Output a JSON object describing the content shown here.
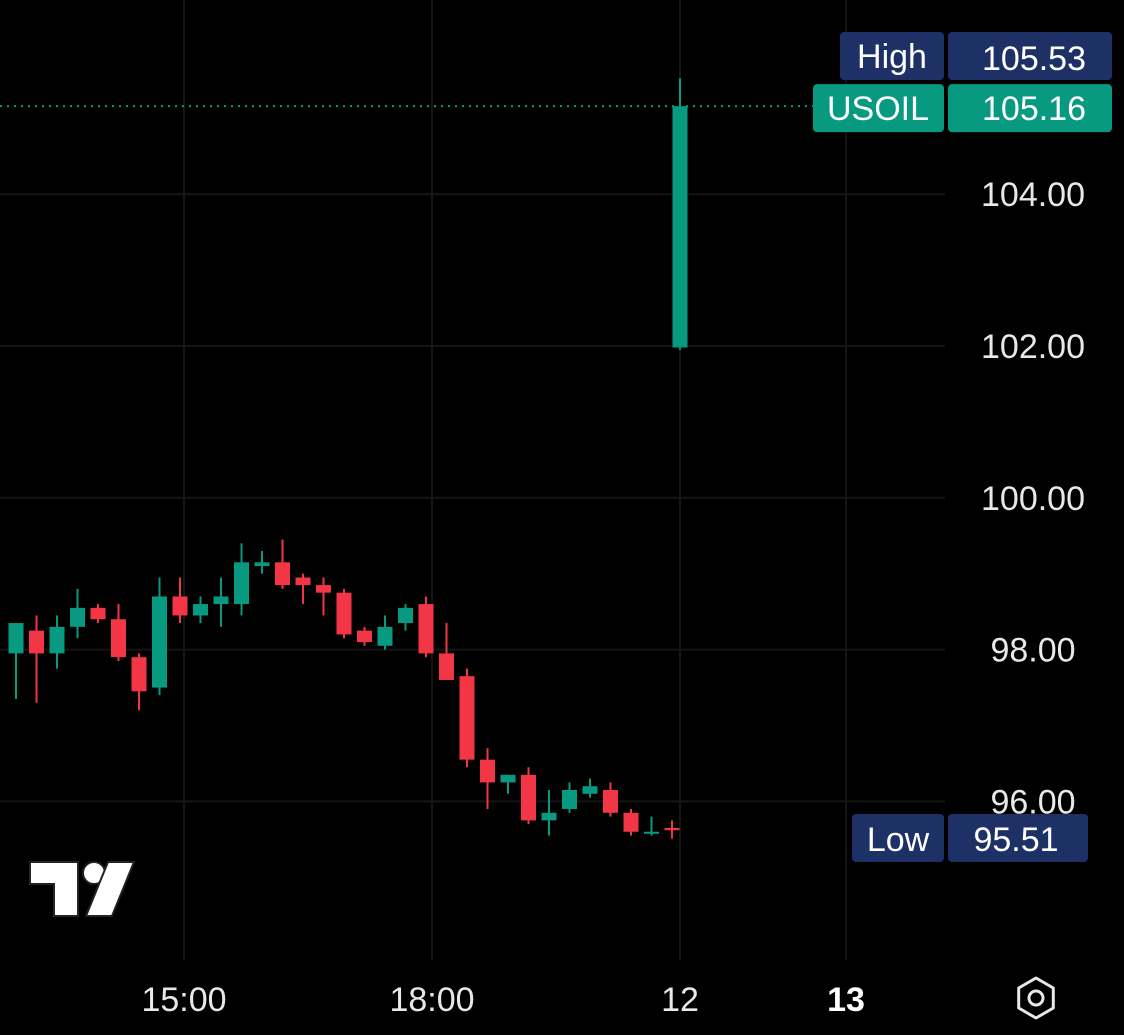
{
  "chart_data": {
    "type": "candlestick",
    "symbol": "USOIL",
    "colors": {
      "up": "#089981",
      "down": "#f23645",
      "tag_navy": "#1e3166",
      "tag_green": "#089981",
      "grid": "#151515",
      "background": "#000000"
    },
    "y_ticks": [
      "104.00",
      "102.00",
      "100.00",
      "98.00",
      "96.00"
    ],
    "y_tick_values": [
      104,
      102,
      100,
      98,
      96
    ],
    "x_ticks": [
      {
        "label": "15:00",
        "bold": false
      },
      {
        "label": "18:00",
        "bold": false
      },
      {
        "label": "12",
        "bold": false
      },
      {
        "label": "13",
        "bold": true
      }
    ],
    "ylim": [
      94.0,
      106.0
    ],
    "high": {
      "label": "High",
      "value": "105.53"
    },
    "last": {
      "label": "USOIL",
      "value": "105.16"
    },
    "low": {
      "label": "Low",
      "value": "95.51"
    },
    "candles": [
      {
        "o": 97.95,
        "h": 98.25,
        "l": 97.35,
        "c": 98.35
      },
      {
        "o": 98.25,
        "h": 98.45,
        "l": 97.3,
        "c": 97.95
      },
      {
        "o": 97.95,
        "h": 98.45,
        "l": 97.75,
        "c": 98.3
      },
      {
        "o": 98.3,
        "h": 98.8,
        "l": 98.15,
        "c": 98.55
      },
      {
        "o": 98.55,
        "h": 98.6,
        "l": 98.35,
        "c": 98.4
      },
      {
        "o": 98.4,
        "h": 98.6,
        "l": 97.85,
        "c": 97.9
      },
      {
        "o": 97.9,
        "h": 97.95,
        "l": 97.2,
        "c": 97.45
      },
      {
        "o": 97.5,
        "h": 98.95,
        "l": 97.4,
        "c": 98.7
      },
      {
        "o": 98.7,
        "h": 98.95,
        "l": 98.35,
        "c": 98.45
      },
      {
        "o": 98.45,
        "h": 98.7,
        "l": 98.35,
        "c": 98.6
      },
      {
        "o": 98.6,
        "h": 98.95,
        "l": 98.3,
        "c": 98.7
      },
      {
        "o": 98.6,
        "h": 99.4,
        "l": 98.45,
        "c": 99.15
      },
      {
        "o": 99.1,
        "h": 99.3,
        "l": 99.0,
        "c": 99.15
      },
      {
        "o": 99.15,
        "h": 99.45,
        "l": 98.8,
        "c": 98.85
      },
      {
        "o": 98.95,
        "h": 99.0,
        "l": 98.6,
        "c": 98.85
      },
      {
        "o": 98.85,
        "h": 98.95,
        "l": 98.45,
        "c": 98.75
      },
      {
        "o": 98.75,
        "h": 98.8,
        "l": 98.15,
        "c": 98.2
      },
      {
        "o": 98.25,
        "h": 98.3,
        "l": 98.05,
        "c": 98.1
      },
      {
        "o": 98.05,
        "h": 98.45,
        "l": 98.0,
        "c": 98.3
      },
      {
        "o": 98.35,
        "h": 98.6,
        "l": 98.25,
        "c": 98.55
      },
      {
        "o": 98.6,
        "h": 98.7,
        "l": 97.9,
        "c": 97.95
      },
      {
        "o": 97.95,
        "h": 98.35,
        "l": 97.6,
        "c": 97.6
      },
      {
        "o": 97.65,
        "h": 97.75,
        "l": 96.45,
        "c": 96.55
      },
      {
        "o": 96.55,
        "h": 96.7,
        "l": 95.9,
        "c": 96.25
      },
      {
        "o": 96.25,
        "h": 96.35,
        "l": 96.1,
        "c": 96.35
      },
      {
        "o": 96.35,
        "h": 96.45,
        "l": 95.7,
        "c": 95.75
      },
      {
        "o": 95.75,
        "h": 96.15,
        "l": 95.55,
        "c": 95.85
      },
      {
        "o": 95.9,
        "h": 96.25,
        "l": 95.85,
        "c": 96.15
      },
      {
        "o": 96.1,
        "h": 96.3,
        "l": 96.05,
        "c": 96.2
      },
      {
        "o": 96.15,
        "h": 96.25,
        "l": 95.8,
        "c": 95.85
      },
      {
        "o": 95.85,
        "h": 95.9,
        "l": 95.55,
        "c": 95.6
      },
      {
        "o": 95.6,
        "h": 95.8,
        "l": 95.55,
        "c": 95.6
      },
      {
        "o": 95.65,
        "h": 95.75,
        "l": 95.51,
        "c": 95.62
      },
      {
        "o": 101.98,
        "h": 105.53,
        "l": 101.95,
        "c": 105.16
      }
    ]
  },
  "controls": {
    "settings_icon": "settings-icon",
    "logo": "tradingview-logo"
  }
}
